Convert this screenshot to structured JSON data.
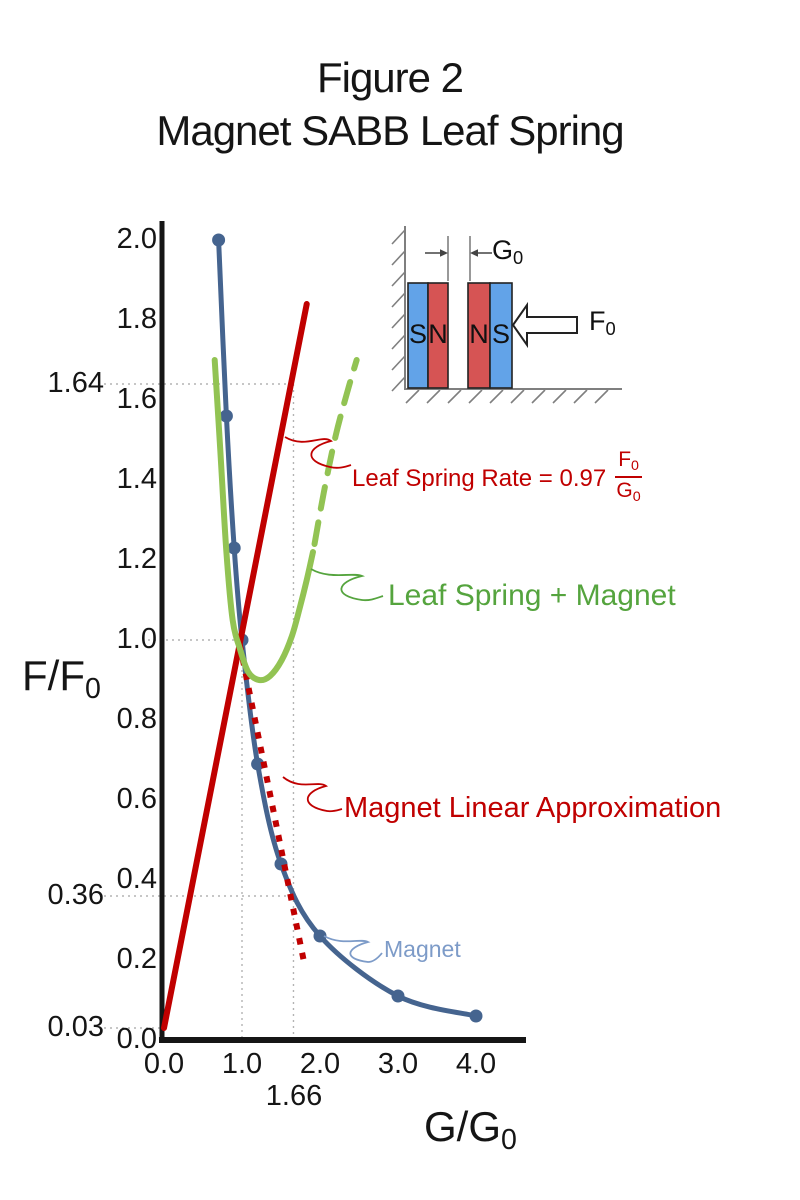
{
  "title": "Figure 2",
  "subtitle": "Magnet SABB Leaf Spring",
  "chart_data": {
    "type": "line",
    "xlabel": {
      "base": "G/G",
      "sub": "0"
    },
    "ylabel": {
      "base": "F/F",
      "sub": "0"
    },
    "xlim": [
      0,
      4.6
    ],
    "ylim": [
      0,
      2.05
    ],
    "x_ticks": [
      "0.0",
      "1.0",
      "2.0",
      "3.0",
      "4.0"
    ],
    "y_ticks": [
      "0.0",
      "0.2",
      "0.4",
      "0.6",
      "0.8",
      "1.0",
      "1.2",
      "1.4",
      "1.6",
      "1.8",
      "2.0"
    ],
    "grid": "reference-dotted-guides-only",
    "legend_position": "inline-annotations",
    "series": [
      {
        "name": "Magnet",
        "color": "#45648f",
        "style": "solid",
        "markers": true,
        "width": 5,
        "points": [
          [
            0.7,
            2.0
          ],
          [
            0.8,
            1.56
          ],
          [
            0.9,
            1.23
          ],
          [
            1.0,
            1.0
          ],
          [
            1.2,
            0.69
          ],
          [
            1.5,
            0.44
          ],
          [
            2.0,
            0.26
          ],
          [
            3.0,
            0.11
          ],
          [
            4.0,
            0.06
          ]
        ]
      },
      {
        "name": "Leaf Spring Rate line (slope 0.97, intercept 0.03)",
        "color": "#c00000",
        "style": "solid",
        "markers": false,
        "width": 6,
        "points": [
          [
            0,
            0.03
          ],
          [
            1.83,
            1.84
          ]
        ]
      },
      {
        "name": "Magnet Linear Approximation",
        "color": "#c00000",
        "style": "dotted",
        "markers": false,
        "width": 6,
        "points": [
          [
            0.97,
            0.99
          ],
          [
            1.8,
            0.19
          ]
        ]
      },
      {
        "name": "Leaf Spring + Magnet (solid part)",
        "color": "#92c353",
        "style": "solid",
        "markers": false,
        "width": 6,
        "points": [
          [
            0.65,
            1.7
          ],
          [
            0.72,
            1.48
          ],
          [
            0.8,
            1.22
          ],
          [
            0.88,
            1.05
          ],
          [
            0.97,
            0.98
          ],
          [
            1.08,
            0.92
          ],
          [
            1.22,
            0.9
          ],
          [
            1.36,
            0.91
          ],
          [
            1.51,
            0.95
          ],
          [
            1.64,
            1.01
          ],
          [
            1.74,
            1.08
          ],
          [
            1.83,
            1.15
          ],
          [
            1.91,
            1.22
          ]
        ]
      },
      {
        "name": "Leaf Spring + Magnet (dashed extrapolation)",
        "color": "#92c353",
        "style": "dashed",
        "markers": false,
        "width": 6,
        "points": [
          [
            1.93,
            1.24
          ],
          [
            2.05,
            1.37
          ],
          [
            2.2,
            1.51
          ],
          [
            2.35,
            1.62
          ],
          [
            2.47,
            1.7
          ]
        ]
      }
    ],
    "guides": {
      "horizontal": [
        {
          "label": "1.64",
          "value": 1.64,
          "x_end": 1.66
        },
        {
          "label": "",
          "value": 1.0,
          "x_end": 1.0
        },
        {
          "label": "0.36",
          "value": 0.36,
          "x_end": 1.66
        },
        {
          "label": "0.03",
          "value": 0.03,
          "x_end": 0
        }
      ],
      "vertical": [
        {
          "label": "1.66",
          "value": 1.66,
          "y_top": 1.64
        },
        {
          "label": "",
          "value": 1.0,
          "y_top": 1.0
        }
      ]
    }
  },
  "annotations": {
    "leaf_spring_rate": {
      "text": "Leaf Spring Rate = 0.97",
      "frac": {
        "num_base": "F",
        "num_sub": "0",
        "den_base": "G",
        "den_sub": "0"
      },
      "color": "#c00000"
    },
    "leaf_spring_magnet": {
      "text": "Leaf Spring + Magnet",
      "color": "#55a43e"
    },
    "magnet_linear": {
      "text": "Magnet Linear Approximation",
      "color": "#c00000"
    },
    "magnet": {
      "text": "Magnet",
      "color": "#7d9bc8"
    }
  },
  "inset": {
    "magnets": [
      {
        "left_label": "S",
        "right_label": "N",
        "left_color": "#62a3e8",
        "right_color": "#d65454"
      },
      {
        "left_label": "N",
        "right_label": "S",
        "left_color": "#d65454",
        "right_color": "#62a3e8"
      }
    ],
    "gap_label": {
      "base": "G",
      "sub": "0"
    },
    "force_label": {
      "base": "F",
      "sub": "0"
    }
  }
}
